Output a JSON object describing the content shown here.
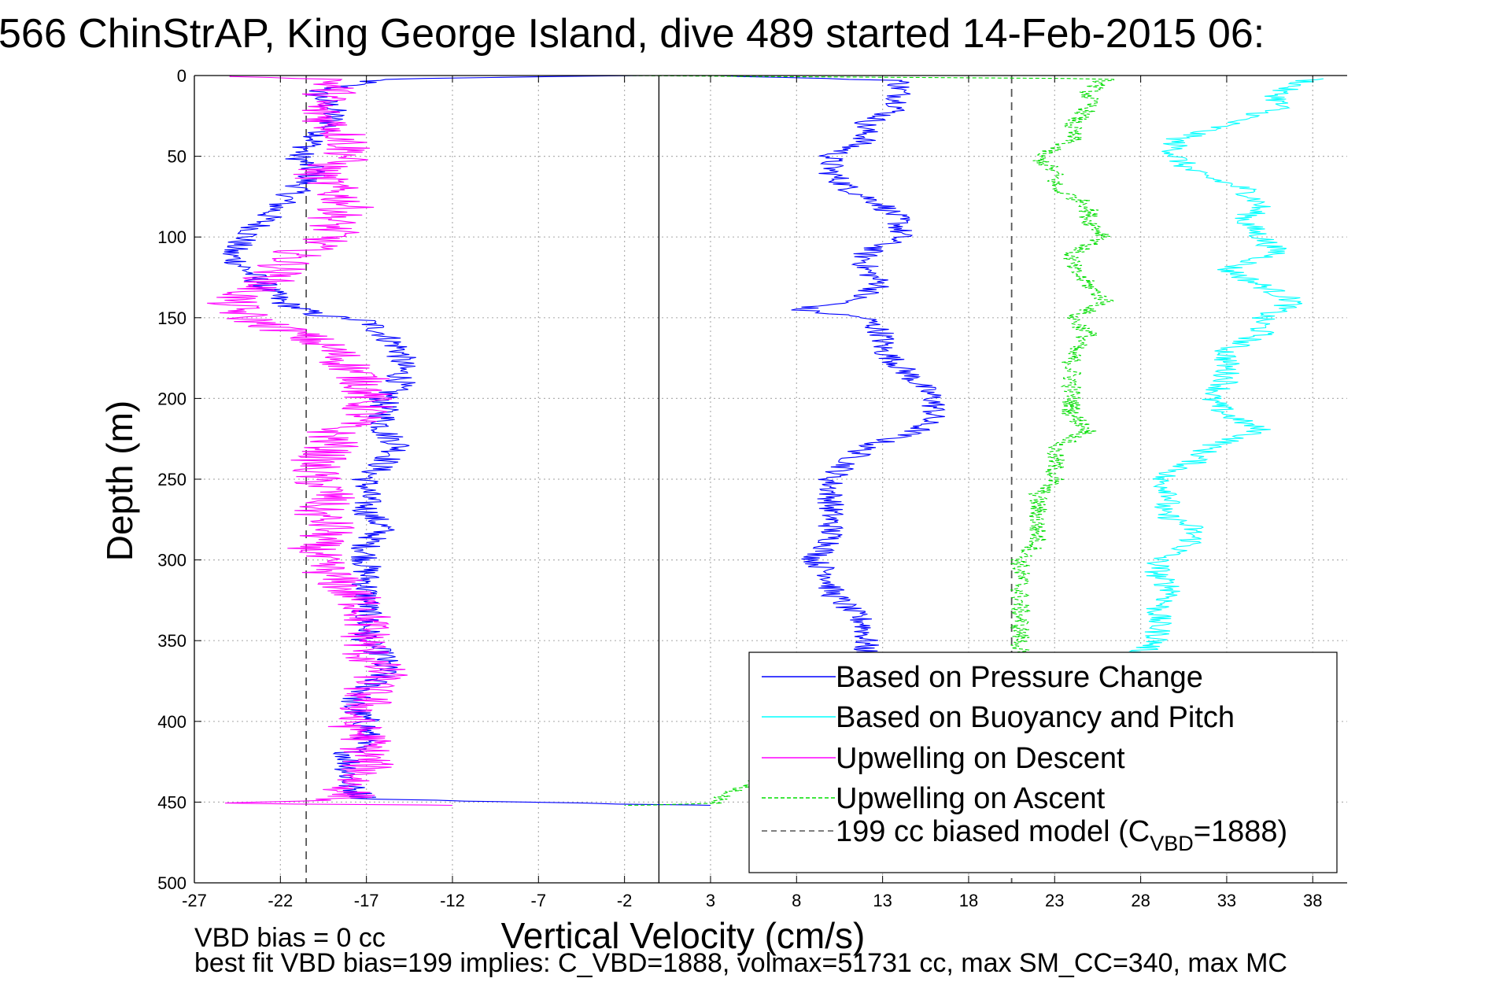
{
  "chart_data": {
    "type": "line",
    "title": "566 ChinStrAP, King George Island, dive 489 started 14-Feb-2015 06:",
    "xlabel": "Vertical Velocity (cm/s)",
    "ylabel": "Depth (m)",
    "xlim": [
      -27,
      40
    ],
    "ylim": [
      500,
      0
    ],
    "y_inverted": true,
    "grid": true,
    "xticks": [
      -27,
      -22,
      -17,
      -12,
      -7,
      -2,
      3,
      8,
      13,
      18,
      23,
      28,
      33,
      38
    ],
    "xtick_labels": [
      "-27",
      "-22",
      "-17",
      "-12",
      "-7",
      "-2",
      "3",
      "8",
      "13",
      "18",
      "23",
      "28",
      "33",
      "38"
    ],
    "yticks": [
      0,
      50,
      100,
      150,
      200,
      250,
      300,
      350,
      400,
      450,
      500
    ],
    "ytick_labels": [
      "0",
      "50",
      "100",
      "150",
      "200",
      "250",
      "300",
      "350",
      "400",
      "450",
      "500"
    ],
    "zero_line_x": 0,
    "legend_position": "bottom-right",
    "series": [
      {
        "name": "Based on Pressure Change",
        "color": "#0000ff",
        "style": "solid",
        "profile": [
          [
            0,
            -1
          ],
          [
            2,
            -16
          ],
          [
            10,
            -20
          ],
          [
            20,
            -19
          ],
          [
            30,
            -19
          ],
          [
            40,
            -20
          ],
          [
            50,
            -21
          ],
          [
            60,
            -20
          ],
          [
            70,
            -21
          ],
          [
            80,
            -22
          ],
          [
            90,
            -23
          ],
          [
            100,
            -24
          ],
          [
            110,
            -25
          ],
          [
            120,
            -24
          ],
          [
            130,
            -23
          ],
          [
            140,
            -22
          ],
          [
            148,
            -20
          ],
          [
            152,
            -17
          ],
          [
            160,
            -16
          ],
          [
            170,
            -15
          ],
          [
            180,
            -15
          ],
          [
            190,
            -15
          ],
          [
            200,
            -16
          ],
          [
            210,
            -16
          ],
          [
            220,
            -16
          ],
          [
            230,
            -15
          ],
          [
            240,
            -16
          ],
          [
            250,
            -17
          ],
          [
            260,
            -17
          ],
          [
            270,
            -17
          ],
          [
            280,
            -16
          ],
          [
            290,
            -17
          ],
          [
            300,
            -17
          ],
          [
            310,
            -17
          ],
          [
            320,
            -17
          ],
          [
            330,
            -17
          ],
          [
            340,
            -17
          ],
          [
            350,
            -17
          ],
          [
            360,
            -16
          ],
          [
            370,
            -16
          ],
          [
            380,
            -17
          ],
          [
            390,
            -18
          ],
          [
            400,
            -17
          ],
          [
            410,
            -17
          ],
          [
            420,
            -18
          ],
          [
            430,
            -18
          ],
          [
            440,
            -18
          ],
          [
            448,
            -17
          ],
          [
            451,
            -3
          ],
          [
            452,
            3
          ]
        ],
        "profile_b": [
          [
            0,
            3
          ],
          [
            3,
            14
          ],
          [
            10,
            14
          ],
          [
            20,
            14
          ],
          [
            30,
            12
          ],
          [
            40,
            12
          ],
          [
            50,
            10
          ],
          [
            60,
            10
          ],
          [
            70,
            11
          ],
          [
            80,
            13
          ],
          [
            90,
            14
          ],
          [
            100,
            14
          ],
          [
            110,
            12
          ],
          [
            120,
            12
          ],
          [
            130,
            13
          ],
          [
            140,
            11
          ],
          [
            145,
            8
          ],
          [
            150,
            12
          ],
          [
            160,
            13
          ],
          [
            170,
            13
          ],
          [
            180,
            14
          ],
          [
            190,
            15
          ],
          [
            200,
            16
          ],
          [
            210,
            16
          ],
          [
            220,
            15
          ],
          [
            230,
            12
          ],
          [
            240,
            11
          ],
          [
            250,
            10
          ],
          [
            260,
            10
          ],
          [
            270,
            10
          ],
          [
            280,
            10
          ],
          [
            290,
            10
          ],
          [
            300,
            9
          ],
          [
            310,
            10
          ],
          [
            320,
            10
          ],
          [
            330,
            11
          ],
          [
            340,
            12
          ],
          [
            350,
            12
          ],
          [
            358,
            12
          ]
        ]
      },
      {
        "name": "Based on Buoyancy and Pitch",
        "color": "#00ffff",
        "style": "solid",
        "profile": [
          [
            2,
            38
          ],
          [
            10,
            36
          ],
          [
            20,
            36
          ],
          [
            30,
            33
          ],
          [
            40,
            30
          ],
          [
            50,
            30
          ],
          [
            60,
            31
          ],
          [
            70,
            34
          ],
          [
            80,
            35
          ],
          [
            90,
            34
          ],
          [
            100,
            35
          ],
          [
            110,
            36
          ],
          [
            120,
            33
          ],
          [
            130,
            35
          ],
          [
            140,
            37
          ],
          [
            150,
            35
          ],
          [
            160,
            35
          ],
          [
            170,
            33
          ],
          [
            180,
            33
          ],
          [
            190,
            33
          ],
          [
            200,
            32
          ],
          [
            210,
            33
          ],
          [
            220,
            35
          ],
          [
            230,
            32
          ],
          [
            240,
            31
          ],
          [
            250,
            29
          ],
          [
            260,
            30
          ],
          [
            270,
            29
          ],
          [
            280,
            31
          ],
          [
            290,
            31
          ],
          [
            300,
            29
          ],
          [
            310,
            29
          ],
          [
            320,
            30
          ],
          [
            330,
            29
          ],
          [
            340,
            29
          ],
          [
            350,
            29
          ],
          [
            357,
            28
          ]
        ]
      },
      {
        "name": "Upwelling on Descent",
        "color": "#ff00ff",
        "style": "solid",
        "profile": [
          [
            0,
            -26
          ],
          [
            2,
            -19
          ],
          [
            10,
            -19
          ],
          [
            20,
            -20
          ],
          [
            30,
            -19
          ],
          [
            40,
            -18
          ],
          [
            50,
            -18
          ],
          [
            60,
            -20
          ],
          [
            70,
            -19
          ],
          [
            80,
            -18
          ],
          [
            90,
            -19
          ],
          [
            100,
            -19
          ],
          [
            110,
            -21
          ],
          [
            120,
            -22
          ],
          [
            130,
            -23
          ],
          [
            140,
            -25
          ],
          [
            150,
            -24
          ],
          [
            160,
            -21
          ],
          [
            170,
            -19
          ],
          [
            180,
            -18
          ],
          [
            190,
            -17
          ],
          [
            200,
            -17
          ],
          [
            210,
            -17
          ],
          [
            220,
            -19
          ],
          [
            230,
            -19
          ],
          [
            240,
            -20
          ],
          [
            250,
            -20
          ],
          [
            260,
            -19
          ],
          [
            270,
            -20
          ],
          [
            280,
            -19
          ],
          [
            290,
            -20
          ],
          [
            300,
            -20
          ],
          [
            310,
            -19
          ],
          [
            320,
            -18
          ],
          [
            330,
            -17
          ],
          [
            340,
            -17
          ],
          [
            350,
            -17
          ],
          [
            360,
            -17
          ],
          [
            370,
            -16
          ],
          [
            380,
            -17
          ],
          [
            390,
            -17
          ],
          [
            400,
            -18
          ],
          [
            410,
            -17
          ],
          [
            420,
            -17
          ],
          [
            430,
            -17
          ],
          [
            440,
            -18
          ],
          [
            448,
            -18
          ],
          [
            451,
            -25
          ],
          [
            452,
            -12
          ]
        ]
      },
      {
        "name": "Upwelling on Ascent",
        "color": "#00dd00",
        "style": "dashed",
        "profile": [
          [
            0,
            -2
          ],
          [
            2,
            26
          ],
          [
            10,
            25
          ],
          [
            20,
            25
          ],
          [
            30,
            24
          ],
          [
            40,
            24
          ],
          [
            50,
            22
          ],
          [
            60,
            23
          ],
          [
            70,
            23
          ],
          [
            80,
            25
          ],
          [
            90,
            25
          ],
          [
            100,
            26
          ],
          [
            110,
            24
          ],
          [
            120,
            24
          ],
          [
            130,
            25
          ],
          [
            140,
            26
          ],
          [
            150,
            24
          ],
          [
            160,
            25
          ],
          [
            170,
            24
          ],
          [
            180,
            24
          ],
          [
            190,
            24
          ],
          [
            200,
            24
          ],
          [
            210,
            24
          ],
          [
            220,
            25
          ],
          [
            230,
            23
          ],
          [
            240,
            23
          ],
          [
            250,
            23
          ],
          [
            260,
            22
          ],
          [
            270,
            22
          ],
          [
            280,
            22
          ],
          [
            290,
            22
          ],
          [
            300,
            21
          ],
          [
            310,
            21
          ],
          [
            320,
            21
          ],
          [
            330,
            21
          ],
          [
            340,
            21
          ],
          [
            350,
            21
          ],
          [
            356,
            21
          ],
          [
            451,
            3
          ],
          [
            452,
            -2
          ]
        ]
      },
      {
        "name": "199 cc biased model (C_VBD=1888)",
        "color": "#555555",
        "style": "dashed",
        "vertical_x": [
          -20.5,
          20.5
        ]
      }
    ],
    "legend": {
      "entries": [
        "Based on Pressure Change",
        "Based on Buoyancy and Pitch",
        "Upwelling on Descent",
        "Upwelling on Ascent",
        "199 cc biased model (C"
      ],
      "subscript": "VBD",
      "suffix": "=1888)"
    }
  },
  "footer": {
    "line1": "VBD bias = 0 cc",
    "line2": "best fit VBD bias=199 implies: C_VBD=1888, volmax=51731 cc, max SM_CC=340, max MC"
  }
}
